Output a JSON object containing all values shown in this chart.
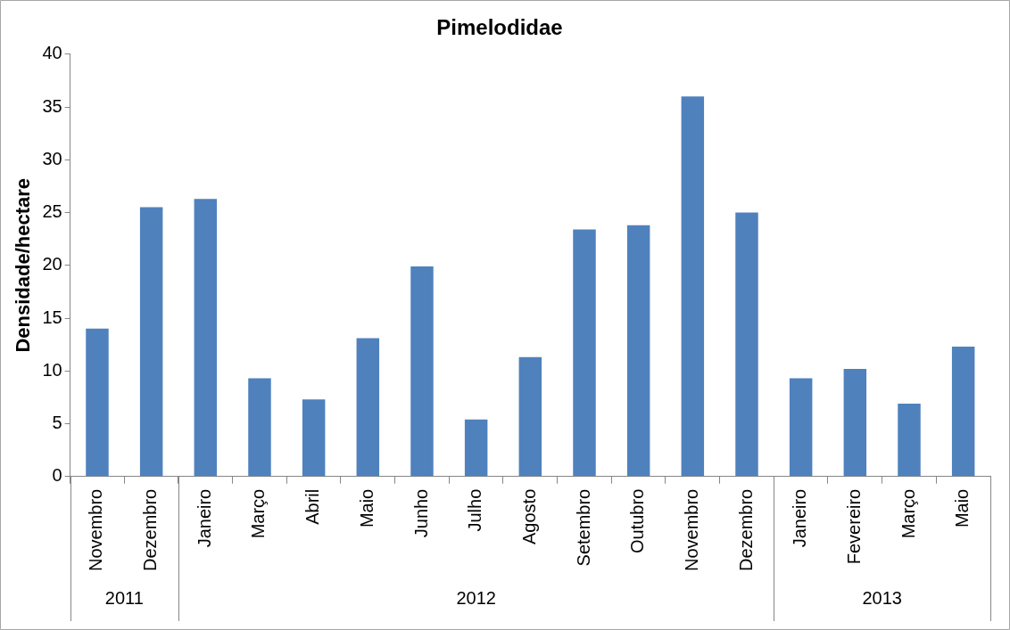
{
  "chart_data": {
    "type": "bar",
    "title": "Pimelodidae",
    "ylabel": "Densidade/hectare",
    "categories": [
      "Novembro",
      "Dezembro",
      "Janeiro",
      "Março",
      "Abril",
      "Maio",
      "Junho",
      "Julho",
      "Agosto",
      "Setembro",
      "Outubro",
      "Novembro",
      "Dezembro",
      "Janeiro",
      "Fevereiro",
      "Março",
      "Maio"
    ],
    "values": [
      14,
      25.5,
      26.3,
      9.3,
      7.3,
      13.1,
      19.9,
      5.4,
      11.3,
      23.4,
      23.8,
      36,
      25,
      9.3,
      10.2,
      6.9,
      12.3
    ],
    "color": "#4f81bd",
    "ylim": [
      0,
      40
    ],
    "yticks": [
      0,
      5,
      10,
      15,
      20,
      25,
      30,
      35,
      40
    ],
    "grid": false,
    "legend": false,
    "annotations": [
      "2011",
      "2012",
      "2013"
    ]
  }
}
